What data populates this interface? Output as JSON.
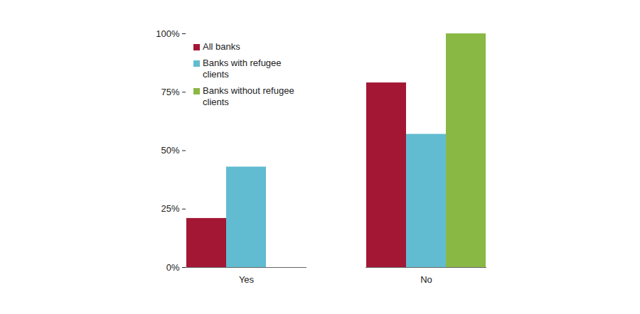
{
  "chart_data": {
    "type": "bar",
    "categories": [
      "Yes",
      "No"
    ],
    "series": [
      {
        "name": "All banks",
        "color": "#a31735",
        "values": [
          21,
          79
        ]
      },
      {
        "name": "Banks with refugee clients",
        "color": "#62bcd1",
        "values": [
          43,
          57
        ]
      },
      {
        "name": "Banks without refugee clients",
        "color": "#8ab844",
        "values": [
          0,
          100
        ]
      }
    ],
    "ylim": [
      0,
      100
    ],
    "yticks": [
      {
        "value": 0,
        "label": "0%"
      },
      {
        "value": 25,
        "label": "25%"
      },
      {
        "value": 50,
        "label": "50%"
      },
      {
        "value": 75,
        "label": "75%"
      },
      {
        "value": 100,
        "label": "100%"
      }
    ],
    "legend": "top-left",
    "grid": false
  }
}
